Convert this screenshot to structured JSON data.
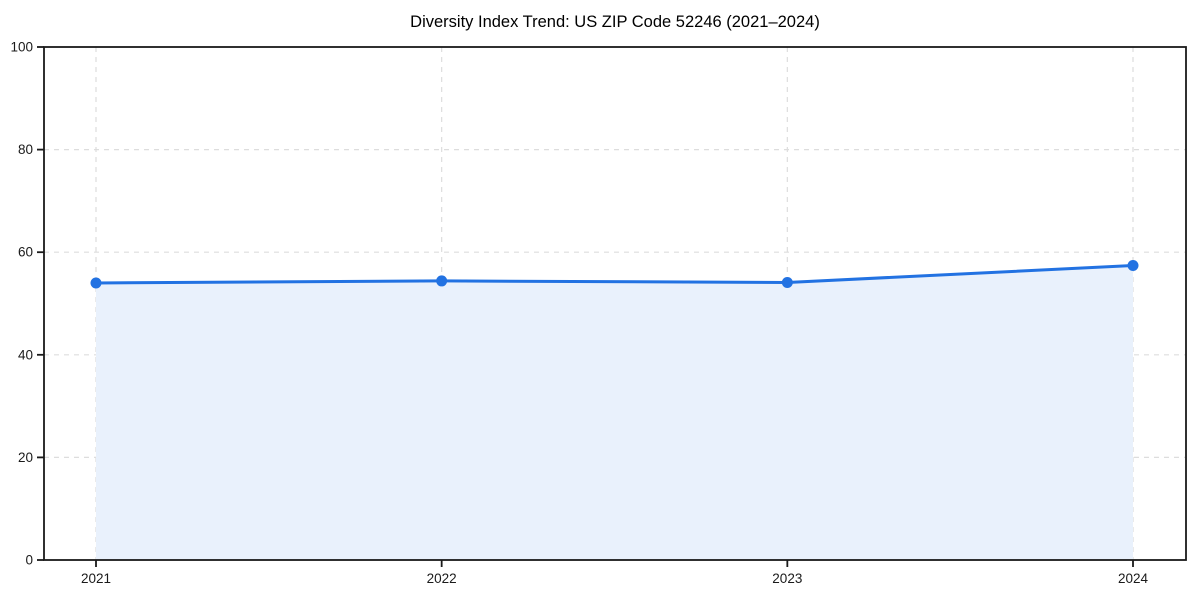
{
  "chart_data": {
    "type": "area",
    "title": "Diversity Index Trend: US ZIP Code 52246 (2021–2024)",
    "xlabel": "",
    "ylabel": "",
    "categories": [
      "2021",
      "2022",
      "2023",
      "2024"
    ],
    "values": [
      54.0,
      54.4,
      54.1,
      57.4
    ],
    "series_name": "Diversity Index",
    "ylim": [
      0,
      100
    ],
    "yticks": [
      0,
      20,
      40,
      60,
      80,
      100
    ],
    "grid": "dashed both directions",
    "legend": "none",
    "marker": "circle",
    "colors": {
      "line": "#2272e2",
      "marker": "#2272e2",
      "area_fill": "#e9f1fc",
      "grid": "#dddddd",
      "spine": "#1a1a1a",
      "tick_text": "#1a1a1a",
      "background": "#ffffff"
    }
  }
}
